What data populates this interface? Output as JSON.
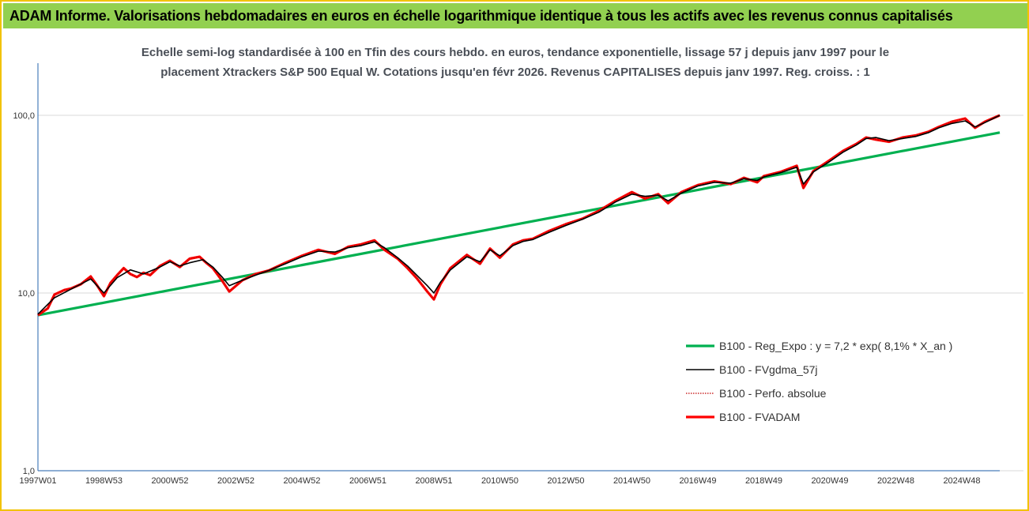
{
  "banner": {
    "title": "ADAM Informe. Valorisations hebdomadaires en euros en échelle logarithmique identique à tous les actifs avec les revenus connus capitalisés"
  },
  "chart_data": {
    "type": "line",
    "title_lines": [
      "Echelle semi-log standardisée à 100 en Tfin des cours hebdo. en euros, tendance exponentielle, lissage 57 j depuis janv 1997 pour le",
      "placement Xtrackers S&P 500 Equal W. Cotations jusqu'en févr 2026. Revenus CAPITALISES depuis janv 1997. Reg. croiss. : 1"
    ],
    "y_scale": "log",
    "ylim": [
      1,
      100
    ],
    "y_ticks": [
      {
        "value": 1,
        "label": "1,0"
      },
      {
        "value": 10,
        "label": "10,0"
      },
      {
        "value": 100,
        "label": "100,0"
      }
    ],
    "xlim": [
      1997.0,
      2026.15
    ],
    "x_ticks": [
      {
        "value": 1997.0,
        "label": "1997W01"
      },
      {
        "value": 1999.0,
        "label": "1998W53"
      },
      {
        "value": 2001.0,
        "label": "2000W52"
      },
      {
        "value": 2003.0,
        "label": "2002W52"
      },
      {
        "value": 2005.0,
        "label": "2004W52"
      },
      {
        "value": 2007.0,
        "label": "2006W51"
      },
      {
        "value": 2009.0,
        "label": "2008W51"
      },
      {
        "value": 2011.0,
        "label": "2010W50"
      },
      {
        "value": 2013.0,
        "label": "2012W50"
      },
      {
        "value": 2015.0,
        "label": "2014W50"
      },
      {
        "value": 2017.0,
        "label": "2016W49"
      },
      {
        "value": 2019.0,
        "label": "2018W49"
      },
      {
        "value": 2021.0,
        "label": "2020W49"
      },
      {
        "value": 2023.0,
        "label": "2022W48"
      },
      {
        "value": 2025.0,
        "label": "2024W48"
      }
    ],
    "grid": "horizontal",
    "legend_position": "bottom-right",
    "colors": {
      "regression": "#00b050",
      "smoothed": "#000000",
      "absolute": "#c00000",
      "fvadam": "#ff0000",
      "axis": "#4a7ebb",
      "grid": "#d9d9d9"
    },
    "series": [
      {
        "name": "B100 - Reg_Expo : y = 7,2 * exp( 8,1% * X_an )",
        "key": "regression",
        "style": "solid-thick",
        "x": [
          1997.0,
          2026.15
        ],
        "y": [
          7.5,
          80
        ]
      },
      {
        "name": "B100 - FVgdma_57j",
        "key": "smoothed",
        "style": "solid",
        "x": [
          1997.0,
          1997.5,
          1998.0,
          1998.6,
          1999.0,
          1999.4,
          1999.8,
          2000.2,
          2000.7,
          2001.0,
          2001.3,
          2001.6,
          2002.0,
          2002.3,
          2002.6,
          2002.8,
          2003.2,
          2003.6,
          2004.0,
          2004.5,
          2005.0,
          2005.5,
          2006.0,
          2006.4,
          2006.8,
          2007.2,
          2007.5,
          2007.9,
          2008.2,
          2008.5,
          2008.8,
          2009.0,
          2009.2,
          2009.5,
          2010.0,
          2010.4,
          2010.7,
          2011.0,
          2011.4,
          2011.7,
          2012.0,
          2012.5,
          2013.0,
          2013.5,
          2014.0,
          2014.5,
          2015.0,
          2015.4,
          2015.8,
          2016.1,
          2016.5,
          2017.0,
          2017.5,
          2018.0,
          2018.4,
          2018.8,
          2019.0,
          2019.5,
          2020.0,
          2020.2,
          2020.5,
          2021.0,
          2021.4,
          2021.8,
          2022.1,
          2022.4,
          2022.8,
          2023.2,
          2023.6,
          2024.0,
          2024.3,
          2024.7,
          2025.1,
          2025.4,
          2025.7,
          2026.15
        ],
        "y": [
          7.6,
          9.4,
          10.5,
          12.0,
          10.0,
          12.2,
          13.5,
          12.8,
          14.0,
          15.0,
          14.2,
          14.8,
          15.4,
          14.0,
          12.2,
          11.0,
          11.8,
          12.6,
          13.4,
          14.6,
          16.0,
          17.2,
          17.0,
          18.0,
          18.5,
          19.4,
          18.0,
          15.8,
          14.2,
          12.5,
          11.0,
          10.0,
          11.5,
          13.5,
          16.0,
          15.0,
          17.5,
          16.2,
          18.5,
          19.5,
          20.0,
          22.0,
          24.0,
          26.0,
          28.5,
          32.5,
          36.0,
          35.0,
          35.5,
          33.0,
          36.5,
          40.0,
          42.0,
          41.5,
          44.0,
          43.0,
          45.0,
          47.5,
          51.0,
          41.0,
          48.0,
          55.0,
          62.0,
          68.0,
          74.0,
          75.0,
          72.0,
          74.0,
          76.0,
          80.0,
          85.0,
          90.0,
          93.0,
          86.0,
          91.0,
          100.0
        ]
      },
      {
        "name": "B100 - Perfo. absolue",
        "key": "absolute",
        "style": "dotted",
        "x": [
          1997.0,
          1997.3,
          1997.5,
          1997.8,
          1998.0,
          1998.3,
          1998.6,
          1998.8,
          1999.0,
          1999.2,
          1999.4,
          1999.6,
          1999.8,
          2000.0,
          2000.2,
          2000.4,
          2000.7,
          2001.0,
          2001.3,
          2001.6,
          2001.9,
          2002.1,
          2002.3,
          2002.6,
          2002.8,
          2003.2,
          2003.6,
          2004.0,
          2004.5,
          2005.0,
          2005.5,
          2006.0,
          2006.4,
          2006.8,
          2007.2,
          2007.5,
          2007.9,
          2008.2,
          2008.5,
          2008.8,
          2009.0,
          2009.2,
          2009.5,
          2010.0,
          2010.4,
          2010.7,
          2011.0,
          2011.4,
          2011.7,
          2012.0,
          2012.5,
          2013.0,
          2013.5,
          2014.0,
          2014.5,
          2015.0,
          2015.4,
          2015.8,
          2016.1,
          2016.5,
          2017.0,
          2017.5,
          2018.0,
          2018.4,
          2018.8,
          2019.0,
          2019.5,
          2020.0,
          2020.2,
          2020.5,
          2021.0,
          2021.4,
          2021.8,
          2022.1,
          2022.4,
          2022.8,
          2023.2,
          2023.6,
          2024.0,
          2024.3,
          2024.7,
          2025.1,
          2025.4,
          2025.7,
          2026.15
        ],
        "y": [
          7.5,
          8.2,
          9.8,
          10.4,
          10.6,
          11.2,
          12.4,
          11.0,
          9.6,
          11.4,
          12.6,
          13.8,
          12.8,
          12.3,
          13.0,
          12.6,
          14.2,
          15.2,
          14.0,
          15.6,
          16.0,
          14.8,
          13.8,
          11.6,
          10.2,
          11.8,
          12.8,
          13.4,
          14.8,
          16.2,
          17.5,
          16.6,
          18.2,
          18.8,
          19.8,
          17.5,
          15.6,
          13.8,
          12.0,
          10.2,
          9.2,
          11.2,
          13.8,
          16.4,
          14.6,
          17.8,
          15.8,
          18.8,
          19.8,
          20.2,
          22.4,
          24.4,
          26.2,
          29.0,
          33.0,
          37.0,
          34.0,
          36.0,
          32.0,
          37.0,
          40.5,
          42.5,
          41.0,
          44.5,
          42.0,
          45.5,
          48.0,
          52.0,
          39.0,
          48.5,
          56.0,
          63.0,
          69.0,
          75.0,
          73.0,
          71.0,
          75.0,
          77.0,
          81.0,
          86.0,
          92.0,
          96.0,
          85.0,
          92.0,
          100.0
        ]
      },
      {
        "name": "B100 - FVADAM",
        "key": "fvadam",
        "style": "solid-thick",
        "x": [
          1997.0,
          1997.3,
          1997.5,
          1997.8,
          1998.0,
          1998.3,
          1998.6,
          1998.8,
          1999.0,
          1999.2,
          1999.4,
          1999.6,
          1999.8,
          2000.0,
          2000.2,
          2000.4,
          2000.7,
          2001.0,
          2001.3,
          2001.6,
          2001.9,
          2002.1,
          2002.3,
          2002.6,
          2002.8,
          2003.2,
          2003.6,
          2004.0,
          2004.5,
          2005.0,
          2005.5,
          2006.0,
          2006.4,
          2006.8,
          2007.2,
          2007.5,
          2007.9,
          2008.2,
          2008.5,
          2008.8,
          2009.0,
          2009.2,
          2009.5,
          2010.0,
          2010.4,
          2010.7,
          2011.0,
          2011.4,
          2011.7,
          2012.0,
          2012.5,
          2013.0,
          2013.5,
          2014.0,
          2014.5,
          2015.0,
          2015.4,
          2015.8,
          2016.1,
          2016.5,
          2017.0,
          2017.5,
          2018.0,
          2018.4,
          2018.8,
          2019.0,
          2019.5,
          2020.0,
          2020.2,
          2020.5,
          2021.0,
          2021.4,
          2021.8,
          2022.1,
          2022.4,
          2022.8,
          2023.2,
          2023.6,
          2024.0,
          2024.3,
          2024.7,
          2025.1,
          2025.4,
          2025.7,
          2026.15
        ],
        "y": [
          7.5,
          8.2,
          9.8,
          10.4,
          10.6,
          11.2,
          12.4,
          11.0,
          9.6,
          11.4,
          12.6,
          13.8,
          12.8,
          12.3,
          13.0,
          12.6,
          14.2,
          15.2,
          14.0,
          15.6,
          16.0,
          14.8,
          13.8,
          11.6,
          10.2,
          11.8,
          12.8,
          13.4,
          14.8,
          16.2,
          17.5,
          16.6,
          18.2,
          18.8,
          19.8,
          17.5,
          15.6,
          13.8,
          12.0,
          10.2,
          9.2,
          11.2,
          13.8,
          16.4,
          14.6,
          17.8,
          15.8,
          18.8,
          19.8,
          20.2,
          22.4,
          24.4,
          26.2,
          29.0,
          33.0,
          37.0,
          34.0,
          36.0,
          32.0,
          37.0,
          40.5,
          42.5,
          41.0,
          44.5,
          42.0,
          45.5,
          48.0,
          52.0,
          39.0,
          48.5,
          56.0,
          63.0,
          69.0,
          75.0,
          73.0,
          71.0,
          75.0,
          77.0,
          81.0,
          86.0,
          92.0,
          96.0,
          85.0,
          92.0,
          100.0
        ]
      }
    ]
  }
}
